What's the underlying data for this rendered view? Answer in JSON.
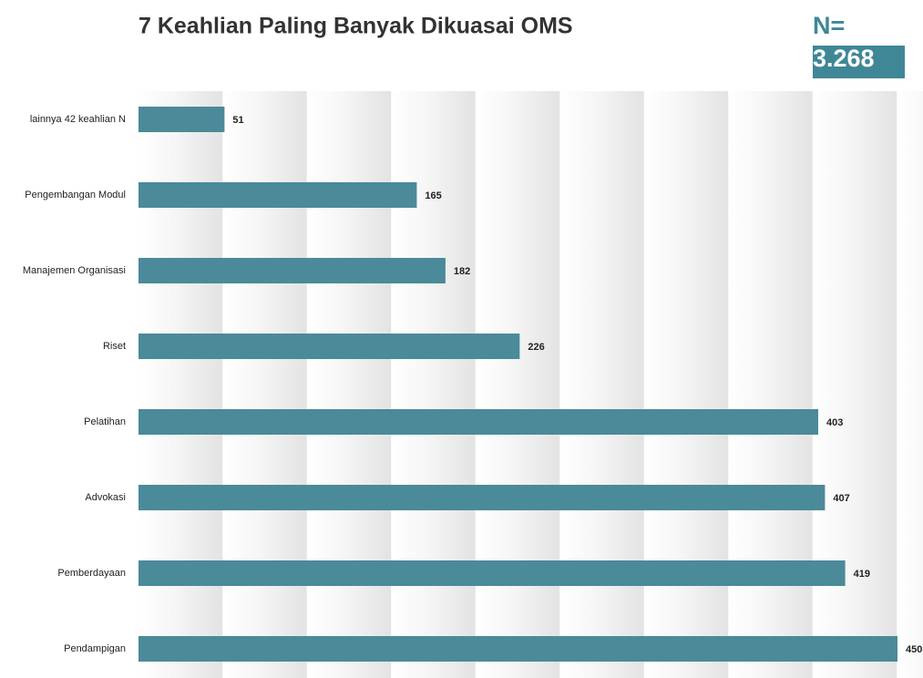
{
  "chart_data": {
    "type": "bar",
    "orientation": "horizontal",
    "title": "7 Keahlian Paling Banyak Dikuasai OMS",
    "annotation": {
      "label": "N=",
      "value": "3.268"
    },
    "categories": [
      "lainnya 42 keahlian N",
      "Pengembangan Modul",
      "Manajemen Organisasi",
      "Riset",
      "Pelatihan",
      "Advokasi",
      "Pemberdayaan",
      "Pendampigan"
    ],
    "values": [
      51,
      165,
      182,
      226,
      403,
      407,
      419,
      450
    ],
    "color": "#4a8a99",
    "xlim": [
      0,
      450
    ]
  }
}
